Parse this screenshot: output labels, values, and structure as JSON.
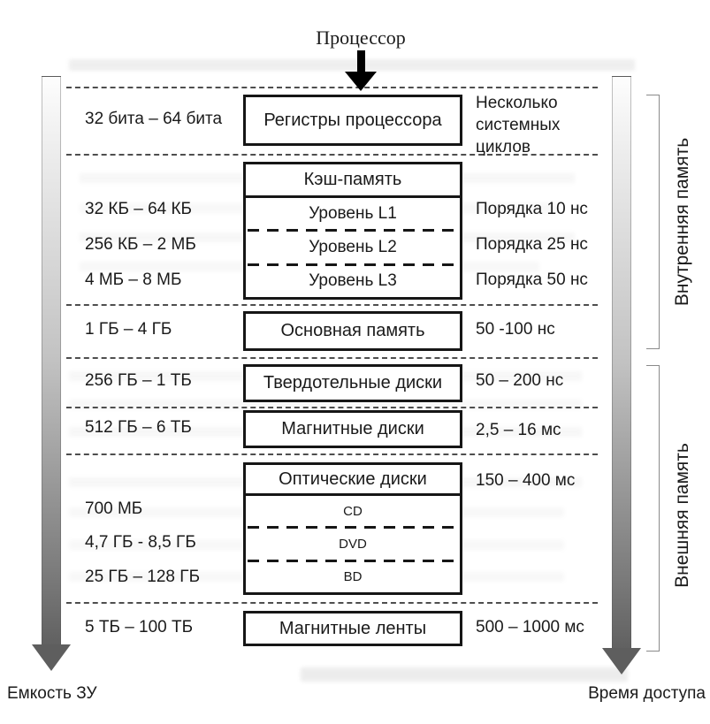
{
  "page": {
    "processor_label": "Процессор"
  },
  "axes": {
    "capacity_label": "Емкость ЗУ",
    "access_time_label": "Время доступа"
  },
  "groups": {
    "internal_memory": "Внутренняя память",
    "external_memory": "Внешняя память"
  },
  "memory_levels": {
    "registers": {
      "capacity": "32 бита – 64 бита",
      "label": "Регистры процессора",
      "access": "Несколько системных циклов"
    },
    "cache": {
      "header": "Кэш-память",
      "levels": [
        {
          "capacity": "32 КБ – 64 КБ",
          "label": "Уровень L1",
          "access": "Порядка 10 нс"
        },
        {
          "capacity": "256 КБ – 2 МБ",
          "label": "Уровень L2",
          "access": "Порядка 25 нс"
        },
        {
          "capacity": "4 МБ – 8 МБ",
          "label": "Уровень L3",
          "access": "Порядка 50 нс"
        }
      ]
    },
    "main_memory": {
      "capacity": "1 ГБ – 4 ГБ",
      "label": "Основная память",
      "access": "50 -100 нс"
    },
    "ssd": {
      "capacity": "256 ГБ – 1 ТБ",
      "label": "Твердотельные диски",
      "access": "50 – 200 нс"
    },
    "hdd": {
      "capacity": "512 ГБ – 6 ТБ",
      "label": "Магнитные диски",
      "access": "2,5 – 16 мс"
    },
    "optical": {
      "header": "Оптические диски",
      "access": "150 – 400 мс",
      "levels": [
        {
          "capacity": "700 МБ",
          "label": "CD"
        },
        {
          "capacity": "4,7 ГБ - 8,5 ГБ",
          "label": "DVD"
        },
        {
          "capacity": "25 ГБ – 128 ГБ",
          "label": "BD"
        }
      ]
    },
    "tape": {
      "capacity": "5 ТБ – 100 ТБ",
      "label": "Магнитные ленты",
      "access": "500 – 1000 мс"
    }
  },
  "colors": {
    "box_border": "#161616",
    "dashed_line": "#4e4e4e",
    "arrow_gradient_top": "#fdfdfd",
    "arrow_gradient_bottom": "#616161",
    "text": "#1a1a1a"
  }
}
